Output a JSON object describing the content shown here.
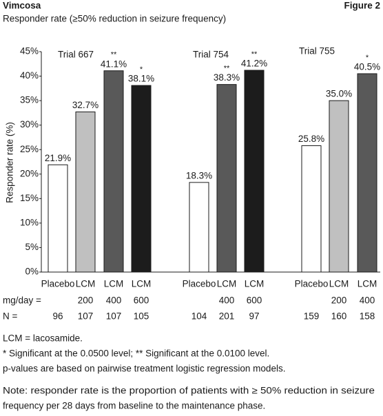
{
  "header": {
    "title": "Vimcosa",
    "figure": "Figure 2",
    "subtitle": "Responder rate (≥50% reduction in seizure frequency)"
  },
  "chart_data": {
    "type": "bar",
    "y_label": "Responder rate (%)",
    "ylim": [
      0,
      45
    ],
    "yticks": [
      {
        "value": 0,
        "label": "0%"
      },
      {
        "value": 5,
        "label": "5%"
      },
      {
        "value": 10,
        "label": "10%"
      },
      {
        "value": 15,
        "label": "15%"
      },
      {
        "value": 20,
        "label": "20%"
      },
      {
        "value": 25,
        "label": "25%"
      },
      {
        "value": 30,
        "label": "30%"
      },
      {
        "value": 35,
        "label": "35%"
      },
      {
        "value": 40,
        "label": "40%"
      },
      {
        "value": 45,
        "label": "45%"
      }
    ],
    "row_labels": {
      "dose": "mg/day =",
      "n": "N ="
    },
    "groups": [
      {
        "name": "Trial 667",
        "categories": [
          "Placebo",
          "LCM",
          "LCM",
          "LCM"
        ],
        "doses": [
          null,
          200,
          400,
          600
        ],
        "n": [
          96,
          107,
          107,
          105
        ],
        "values": [
          21.9,
          32.7,
          41.1,
          38.1
        ],
        "value_labels": [
          "21.9%",
          "32.7%",
          "41.1%",
          "38.1%"
        ],
        "significance": [
          null,
          null,
          "**",
          "*"
        ],
        "colors": [
          "#ffffff",
          "#c0c0c0",
          "#595959",
          "#1c1c1c"
        ]
      },
      {
        "name": "Trial 754",
        "categories": [
          "Placebo",
          "LCM",
          "LCM"
        ],
        "doses": [
          null,
          400,
          600
        ],
        "n": [
          104,
          201,
          97
        ],
        "values": [
          18.3,
          38.3,
          41.2
        ],
        "value_labels": [
          "18.3%",
          "38.3%",
          "41.2%"
        ],
        "significance": [
          null,
          "**",
          "**"
        ],
        "colors": [
          "#ffffff",
          "#595959",
          "#1c1c1c"
        ]
      },
      {
        "name": "Trial 755",
        "categories": [
          "Placebo",
          "LCM",
          "LCM"
        ],
        "doses": [
          null,
          200,
          400
        ],
        "n": [
          159,
          160,
          158
        ],
        "values": [
          25.8,
          35.0,
          40.5
        ],
        "value_labels": [
          "25.8%",
          "35.0%",
          "40.5%"
        ],
        "significance": [
          null,
          null,
          "*"
        ],
        "colors": [
          "#ffffff",
          "#c0c0c0",
          "#595959"
        ]
      }
    ]
  },
  "footnotes": [
    "LCM = lacosamide.",
    "* Significant at the 0.0500 level;  ** Significant at the 0.0100 level.",
    "p-values are based on pairwise treatment logistic regression models."
  ],
  "note": [
    "Note: responder rate is the proportion of patients with ≥ 50% reduction in seizure",
    "frequency per 28 days from baseline to the maintenance phase."
  ]
}
